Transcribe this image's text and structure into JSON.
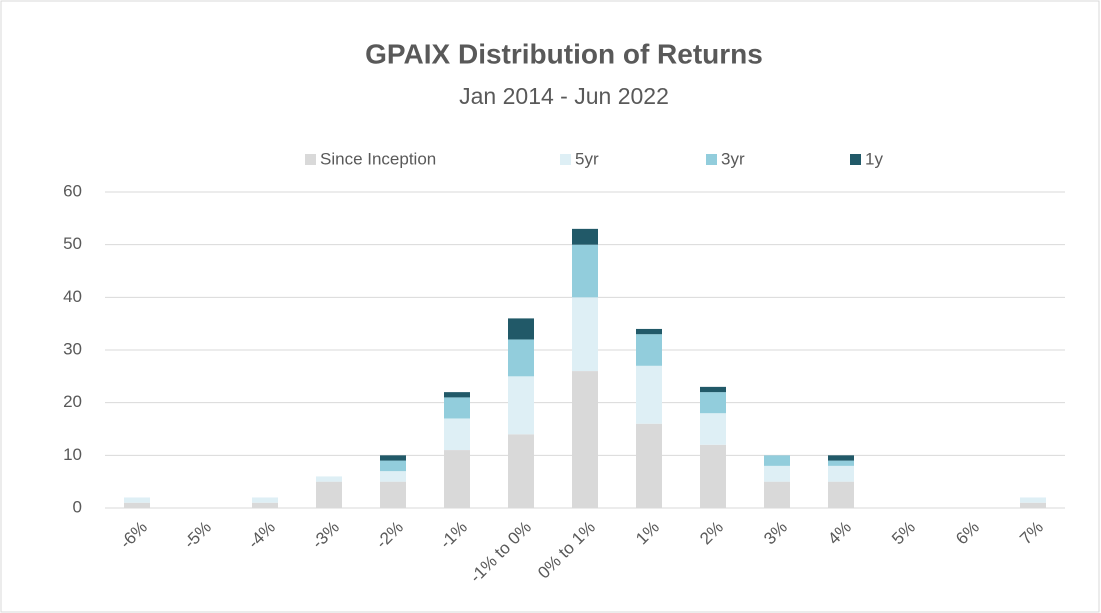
{
  "chart_data": {
    "type": "stacked_bar",
    "title": "GPAIX Distribution of Returns",
    "subtitle": "Jan 2014 - Jun 2022",
    "categories": [
      "-6%",
      "-5%",
      "-4%",
      "-3%",
      "-2%",
      "-1%",
      "-1% to 0%",
      "0% to 1%",
      "1%",
      "2%",
      "3%",
      "4%",
      "5%",
      "6%",
      "7%"
    ],
    "series": [
      {
        "name": "Since Inception",
        "color": "#d9d9d9",
        "values": [
          1,
          0,
          1,
          5,
          5,
          11,
          14,
          26,
          16,
          12,
          5,
          5,
          0,
          0,
          1
        ]
      },
      {
        "name": "5yr",
        "color": "#deeff5",
        "values": [
          1,
          0,
          1,
          1,
          2,
          6,
          11,
          14,
          11,
          6,
          3,
          3,
          0,
          0,
          1
        ]
      },
      {
        "name": "3yr",
        "color": "#92cddc",
        "values": [
          0,
          0,
          0,
          0,
          2,
          4,
          7,
          10,
          6,
          4,
          2,
          1,
          0,
          0,
          0
        ]
      },
      {
        "name": "1y",
        "color": "#215968",
        "values": [
          0,
          0,
          0,
          0,
          1,
          1,
          4,
          3,
          1,
          1,
          0,
          1,
          0,
          0,
          0
        ]
      }
    ],
    "ylim": [
      0,
      60
    ],
    "yticks": [
      0,
      10,
      20,
      30,
      40,
      50,
      60
    ],
    "grid": true,
    "legend": "top"
  }
}
